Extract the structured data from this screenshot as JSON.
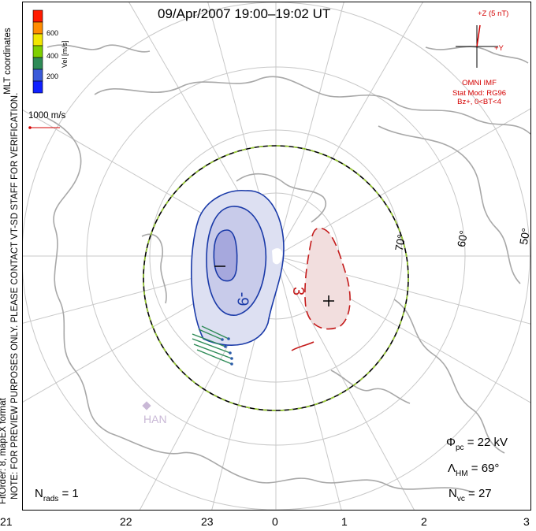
{
  "title": "09/Apr/2007  19:00–19:02 UT",
  "colorbar": {
    "title": "Vel [m/s]",
    "ticks": [
      "600",
      "400",
      "200"
    ],
    "colors": [
      "#ff1a00",
      "#ff8c00",
      "#f2e600",
      "#7fd000",
      "#2e8b57",
      "#3a5ad9",
      "#1020ff"
    ]
  },
  "coord_label": "MLT coordinates",
  "vector_scale": "1000 m/s",
  "note_lines": [
    "NOTE: FOR PREVIEW PURPOSES ONLY. PLEASE CONTACT VT-SD STAFF FOR VERIFICATION.",
    "FitOrder: 8, mapEX format"
  ],
  "imf": {
    "axis_z": "+Z (5 nT)",
    "axis_y": "+Y",
    "source": "OMNI IMF",
    "model_line1": "Stat Mod: RG96",
    "model_line2": "Bz+,  0<BT<4",
    "color": "#d40000"
  },
  "latitude_labels": [
    "70°",
    "60°",
    "50°"
  ],
  "contour_labels": {
    "negative": "-9",
    "positive": "3",
    "negative_symbol": "–",
    "positive_symbol": "+"
  },
  "station": "HAN",
  "mlt_labels": [
    "21",
    "22",
    "23",
    "0",
    "1",
    "2",
    "3"
  ],
  "stats": {
    "phi_symbol": "Φ",
    "phi_sub": "pc",
    "phi_value": "= 22 kV",
    "lambda_symbol": "Λ",
    "lambda_sub": "HM",
    "lambda_value": "= 69°",
    "nvc_symbol": "N",
    "nvc_sub": "vc",
    "nvc_value": "= 27",
    "nrads_symbol": "N",
    "nrads_sub": "rads",
    "nrads_value": "= 1"
  },
  "contour_colors": {
    "negative": "#1a3aa8",
    "positive": "#c41a1a",
    "hmb": "#000000",
    "hmb_dash": "#9acd32"
  }
}
